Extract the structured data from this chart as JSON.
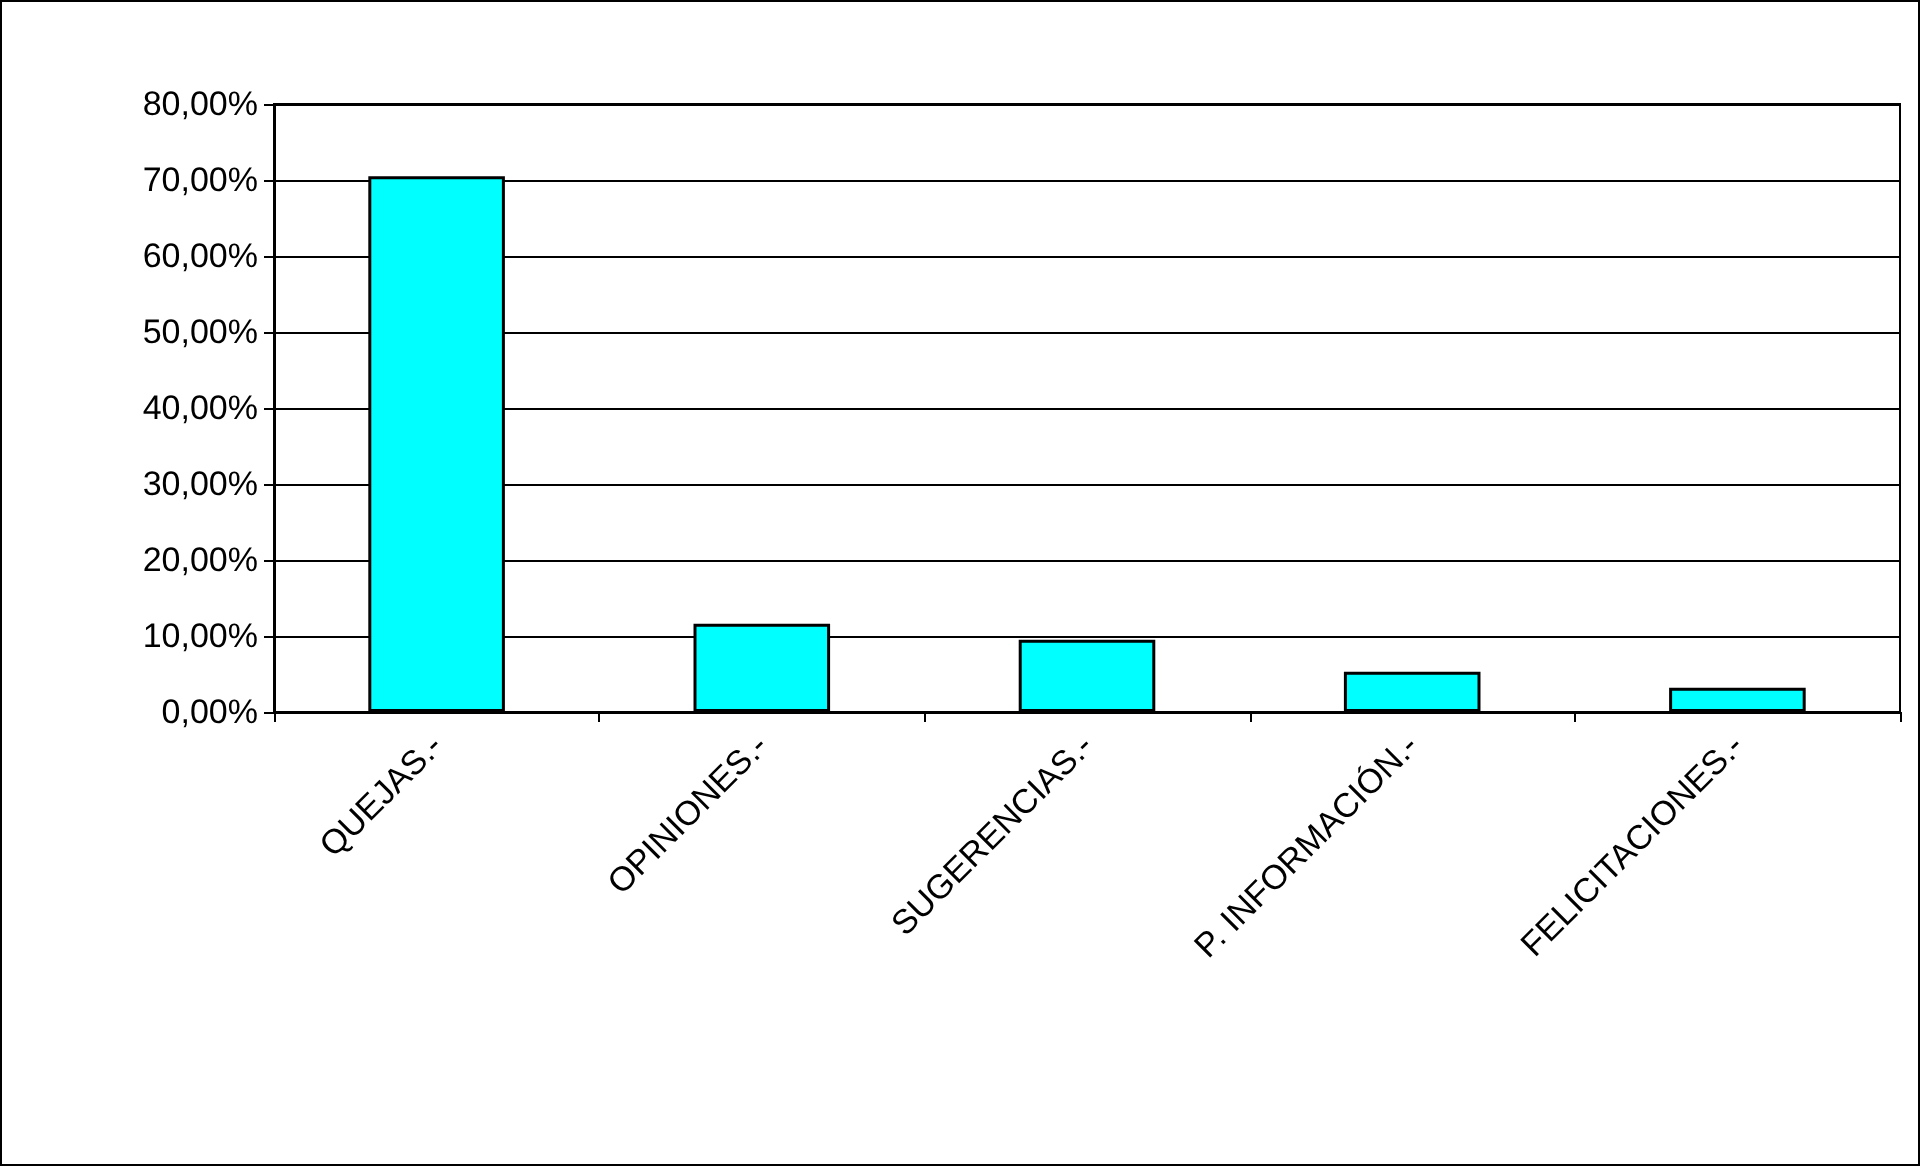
{
  "chart_data": {
    "type": "bar",
    "categories": [
      "QUEJAS.-",
      "OPINIONES.-",
      "SUGERENCIAS.-",
      "P. INFORMACIÓN.-",
      "FELICITACIONES.-"
    ],
    "values": [
      70.5,
      11.6,
      9.5,
      5.3,
      3.2
    ],
    "color": "#00ffff",
    "ylim": [
      0,
      80
    ],
    "yticks": [
      {
        "value": 0,
        "label": "0,00%"
      },
      {
        "value": 10,
        "label": "10,00%"
      },
      {
        "value": 20,
        "label": "20,00%"
      },
      {
        "value": 30,
        "label": "30,00%"
      },
      {
        "value": 40,
        "label": "40,00%"
      },
      {
        "value": 50,
        "label": "50,00%"
      },
      {
        "value": 60,
        "label": "60,00%"
      },
      {
        "value": 70,
        "label": "70,00%"
      },
      {
        "value": 80,
        "label": "80,00%"
      }
    ],
    "grid": true
  }
}
